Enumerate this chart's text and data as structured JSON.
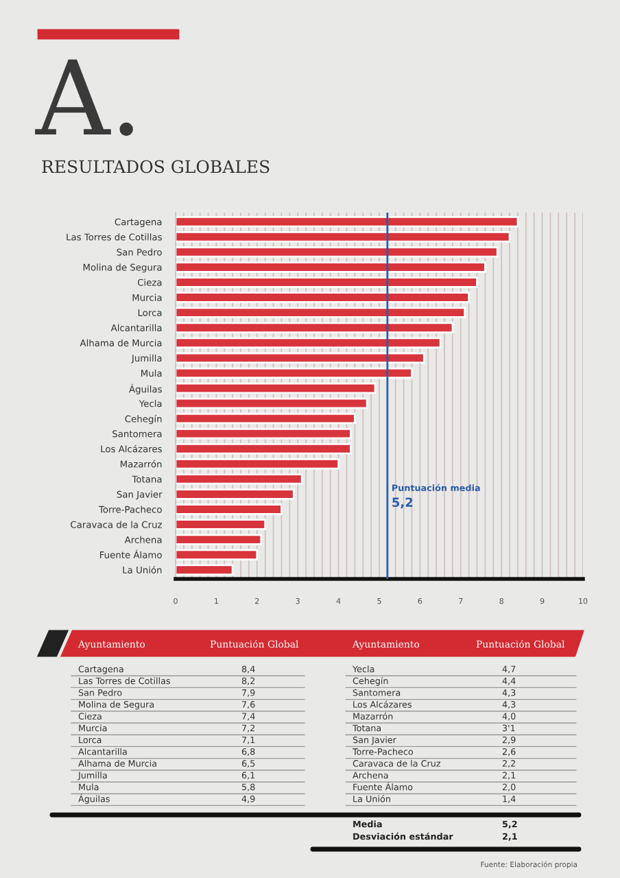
{
  "chart_data": {
    "type": "bar",
    "orientation": "horizontal",
    "title": "RESULTADOS GLOBALES",
    "categories": [
      "Cartagena",
      "Las Torres de Cotillas",
      "San Pedro",
      "Molina de Segura",
      "Cieza",
      "Murcia",
      "Lorca",
      "Alcantarilla",
      "Alhama de Murcia",
      "Jumilla",
      "Mula",
      "Águilas",
      "Yecla",
      "Cehegín",
      "Santomera",
      "Los Alcázares",
      "Mazarrón",
      "Totana",
      "San Javier",
      "Torre-Pacheco",
      "Caravaca de la Cruz",
      "Archena",
      "Fuente Álamo",
      "La Unión"
    ],
    "values": [
      8.4,
      8.2,
      7.9,
      7.6,
      7.4,
      7.2,
      7.1,
      6.8,
      6.5,
      6.1,
      5.8,
      4.9,
      4.7,
      4.4,
      4.3,
      4.3,
      4.0,
      3.1,
      2.9,
      2.6,
      2.2,
      2.1,
      2.0,
      1.4
    ],
    "color": "#d8343c",
    "xlim": [
      0,
      10
    ],
    "xticks": [
      0,
      {
        "value": 0.2,
        "label": null
      },
      {
        "value": 0.4,
        "label": null
      },
      {
        "value": 0.6,
        "label": null
      },
      {
        "value": 0.8,
        "label": null
      },
      1,
      {
        "value": 1.2,
        "label": null
      },
      {
        "value": 1.4,
        "label": null
      },
      {
        "value": 1.6,
        "label": null
      },
      {
        "value": 1.8,
        "label": null
      },
      2,
      {
        "value": 2.2,
        "label": null
      },
      {
        "value": 2.4,
        "label": null
      },
      {
        "value": 2.6,
        "label": null
      },
      {
        "value": 2.8,
        "label": null
      },
      3,
      {
        "value": 3.2,
        "label": null
      },
      {
        "value": 3.4,
        "label": null
      },
      {
        "value": 3.6,
        "label": null
      },
      {
        "value": 3.8,
        "label": null
      },
      4,
      {
        "value": 4.2,
        "label": null
      },
      {
        "value": 4.4,
        "label": null
      },
      {
        "value": 4.6,
        "label": null
      },
      {
        "value": 4.8,
        "label": null
      },
      5,
      {
        "value": 5.2,
        "label": null
      },
      {
        "value": 5.4,
        "label": null
      },
      {
        "value": 5.6,
        "label": null
      },
      {
        "value": 5.8,
        "label": null
      },
      6,
      {
        "value": 6.2,
        "label": null
      },
      {
        "value": 6.4,
        "label": null
      },
      {
        "value": 6.6,
        "label": null
      },
      {
        "value": 6.8,
        "label": null
      },
      7,
      {
        "value": 7.2,
        "label": null
      },
      {
        "value": 7.4,
        "label": null
      },
      {
        "value": 7.6,
        "label": null
      },
      {
        "value": 7.8,
        "label": null
      },
      8,
      {
        "value": 8.2,
        "label": null
      },
      {
        "value": 8.4,
        "label": null
      },
      {
        "value": 8.6,
        "label": null
      },
      {
        "value": 8.8,
        "label": null
      },
      9,
      {
        "value": 9.2,
        "label": null
      },
      {
        "value": 9.4,
        "label": null
      },
      {
        "value": 9.6,
        "label": null
      },
      {
        "value": 9.8,
        "label": null
      },
      10
    ],
    "grid": "x",
    "ref_lines": [
      {
        "axis": "x",
        "value": 5.2,
        "label": "Puntuación media\n5,2",
        "color": "#2a5caa"
      }
    ],
    "annotations": [
      "A.",
      "Ayuntamiento",
      "Puntuación Global",
      "Ayuntamiento",
      "Puntuación Global",
      "8,4",
      "8,2",
      "7,9",
      "7,6",
      "7,4",
      "7,2",
      "7,1",
      "6,8",
      "6,5",
      "6,1",
      "5,8",
      "4,9",
      "4,7",
      "4,4",
      "4,3",
      "4,3",
      "4,0",
      "3'1",
      "2,9",
      "2,6",
      "2,2",
      "2,1",
      "2,0",
      "1,4",
      "Media",
      "5,2",
      "Desviación estándar",
      "2,1",
      "Fuente: Elaboración propia"
    ]
  }
}
